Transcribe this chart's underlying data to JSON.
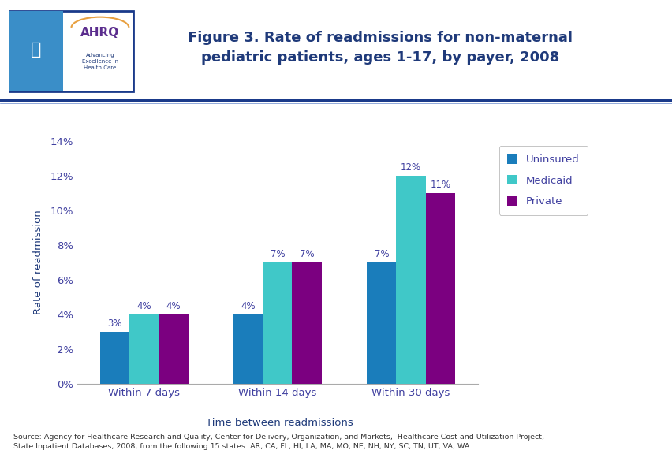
{
  "title": "Figure 3. Rate of readmissions for non-maternal\npediatric patients, ages 1-17, by payer, 2008",
  "categories": [
    "Within 7 days",
    "Within 14 days",
    "Within 30 days"
  ],
  "series": [
    {
      "name": "Uninsured",
      "values": [
        3,
        4,
        7
      ],
      "color": "#1A7DBB"
    },
    {
      "name": "Medicaid",
      "values": [
        4,
        7,
        12
      ],
      "color": "#40C8C8"
    },
    {
      "name": "Private",
      "values": [
        4,
        7,
        11
      ],
      "color": "#7B0080"
    }
  ],
  "xlabel": "Time between readmissions",
  "ylabel": "Rate of readmission",
  "ylim": [
    0,
    14
  ],
  "yticks": [
    0,
    2,
    4,
    6,
    8,
    10,
    12,
    14
  ],
  "ytick_labels": [
    "0%",
    "2%",
    "4%",
    "6%",
    "8%",
    "10%",
    "12%",
    "14%"
  ],
  "bar_width": 0.22,
  "title_color": "#1F3A7A",
  "axis_label_color": "#1F3A7A",
  "tick_label_color": "#4040A0",
  "source_text": "Source: Agency for Healthcare Research and Quality, Center for Delivery, Organization, and Markets,  Healthcare Cost and Utilization Project,\nState Inpatient Databases, 2008, from the following 15 states: AR, CA, FL, HI, LA, MA, MO, NE, NH, NY, SC, TN, UT, VA, WA",
  "background_color": "#FFFFFF",
  "separator_color": "#1A3A8A",
  "logo_bg_color": "#3A8EC8",
  "logo_border_color": "#1A3A8A"
}
